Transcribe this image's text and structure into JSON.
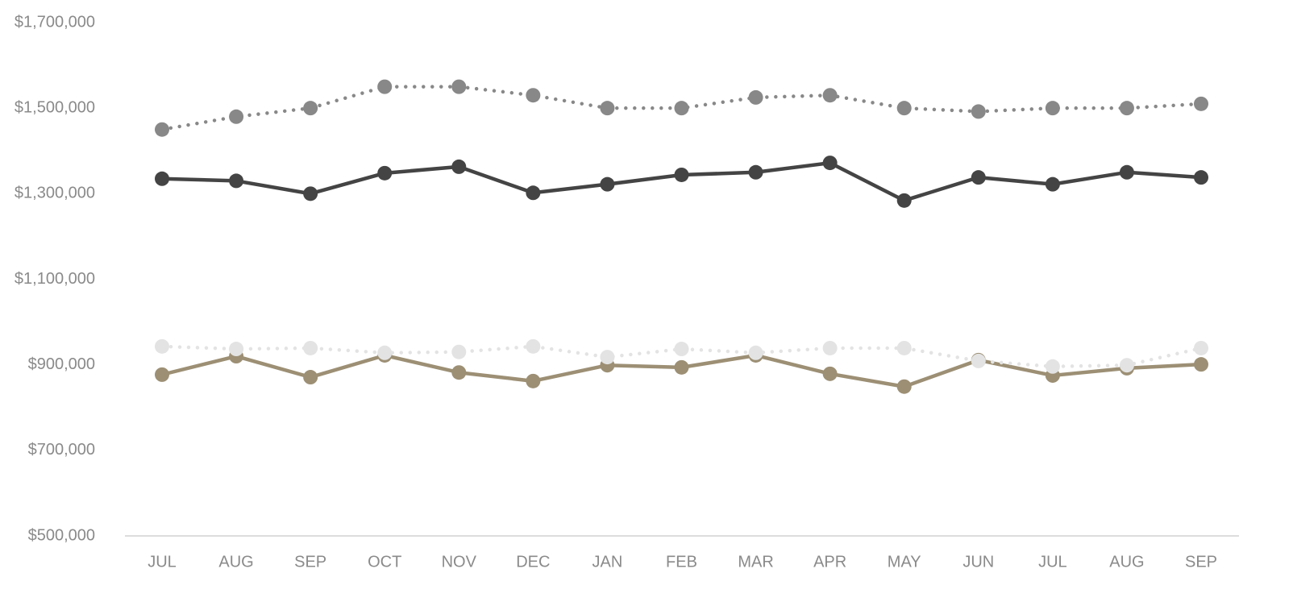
{
  "chart_data": {
    "type": "line",
    "categories": [
      "JUL",
      "AUG",
      "SEP",
      "OCT",
      "NOV",
      "DEC",
      "JAN",
      "FEB",
      "MAR",
      "APR",
      "MAY",
      "JUN",
      "JUL",
      "AUG",
      "SEP"
    ],
    "ylim": [
      500000,
      1700000
    ],
    "yticks": [
      {
        "value": 500000,
        "label": "$500,000"
      },
      {
        "value": 700000,
        "label": "$700,000"
      },
      {
        "value": 900000,
        "label": "$900,000"
      },
      {
        "value": 1100000,
        "label": "$1,100,000"
      },
      {
        "value": 1300000,
        "label": "$1,300,000"
      },
      {
        "value": 1500000,
        "label": "$1,500,000"
      },
      {
        "value": 1700000,
        "label": "$1,700,000"
      }
    ],
    "grid": false,
    "series": [
      {
        "color": "#888888",
        "style": "dotted",
        "values": [
          1450000,
          1480000,
          1500000,
          1550000,
          1550000,
          1530000,
          1500000,
          1500000,
          1525000,
          1530000,
          1500000,
          1492000,
          1500000,
          1500000,
          1510000
        ]
      },
      {
        "color": "#444444",
        "style": "solid",
        "values": [
          1335000,
          1330000,
          1300000,
          1348000,
          1363000,
          1302000,
          1322000,
          1344000,
          1350000,
          1372000,
          1284000,
          1338000,
          1322000,
          1350000,
          1338000
        ]
      },
      {
        "color": "#9c8f74",
        "style": "solid",
        "values": [
          877000,
          920000,
          871000,
          922000,
          882000,
          862000,
          899000,
          894000,
          922000,
          879000,
          849000,
          911000,
          875000,
          892000,
          901000
        ]
      },
      {
        "color": "#e3e3e3",
        "style": "dotted",
        "values": [
          943000,
          937000,
          939000,
          928000,
          930000,
          943000,
          918000,
          937000,
          928000,
          939000,
          939000,
          909000,
          896000,
          899000,
          939000
        ]
      }
    ]
  }
}
